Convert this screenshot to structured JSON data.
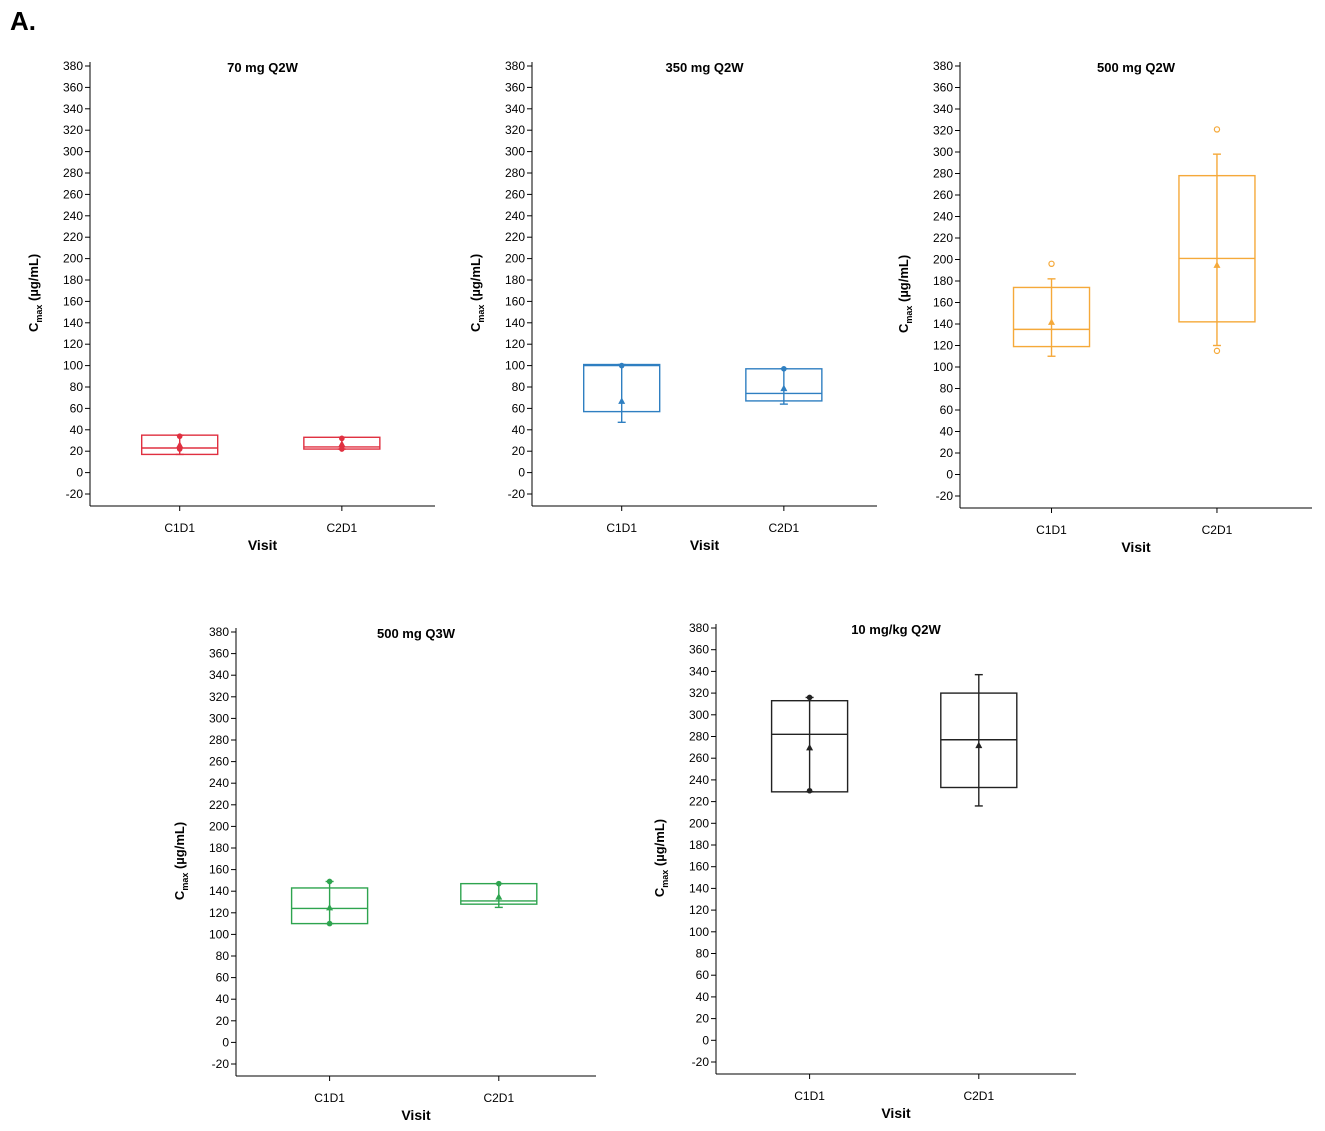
{
  "figure_label": "A.",
  "chart_data": [
    {
      "type": "boxplot",
      "title": "70 mg Q2W",
      "xlabel": "Visit",
      "ylabel_main": "C",
      "ylabel_sub": "max",
      "ylabel_rest": " (µg/mL)",
      "color": "#e03040",
      "ylim": [
        -20,
        380
      ],
      "yticks": [
        -20,
        0,
        20,
        40,
        60,
        80,
        100,
        120,
        140,
        160,
        180,
        200,
        220,
        240,
        260,
        280,
        300,
        320,
        340,
        360,
        380
      ],
      "categories": [
        "C1D1",
        "C2D1"
      ],
      "boxes": [
        {
          "q1": 17,
          "median": 23,
          "q3": 35,
          "whisker_low": 17,
          "whisker_high": 35,
          "mean": 26,
          "points": [
            22,
            34
          ]
        },
        {
          "q1": 22,
          "median": 24,
          "q3": 33,
          "whisker_low": 22,
          "whisker_high": 33,
          "mean": 27,
          "points": [
            22,
            32
          ]
        }
      ],
      "outliers": []
    },
    {
      "type": "boxplot",
      "title": "350 mg Q2W",
      "xlabel": "Visit",
      "ylabel_main": "C",
      "ylabel_sub": "max",
      "ylabel_rest": " (µg/mL)",
      "color": "#2f7fc1",
      "ylim": [
        -20,
        380
      ],
      "yticks": [
        -20,
        0,
        20,
        40,
        60,
        80,
        100,
        120,
        140,
        160,
        180,
        200,
        220,
        240,
        260,
        280,
        300,
        320,
        340,
        360,
        380
      ],
      "categories": [
        "C1D1",
        "C2D1"
      ],
      "boxes": [
        {
          "q1": 57,
          "median": 100,
          "q3": 101,
          "whisker_low": 47,
          "whisker_high": 101,
          "mean": 67,
          "points": [
            100
          ]
        },
        {
          "q1": 67,
          "median": 74,
          "q3": 97,
          "whisker_low": 64,
          "whisker_high": 97,
          "mean": 79,
          "points": [
            97
          ]
        }
      ],
      "outliers": []
    },
    {
      "type": "boxplot",
      "title": "500 mg Q2W",
      "xlabel": "Visit",
      "ylabel_main": "C",
      "ylabel_sub": "max",
      "ylabel_rest": " (µg/mL)",
      "color": "#f5a93a",
      "ylim": [
        -20,
        380
      ],
      "yticks": [
        -20,
        0,
        20,
        40,
        60,
        80,
        100,
        120,
        140,
        160,
        180,
        200,
        220,
        240,
        260,
        280,
        300,
        320,
        340,
        360,
        380
      ],
      "categories": [
        "C1D1",
        "C2D1"
      ],
      "boxes": [
        {
          "q1": 119,
          "median": 135,
          "q3": 174,
          "whisker_low": 110,
          "whisker_high": 182,
          "mean": 142,
          "points": []
        },
        {
          "q1": 142,
          "median": 201,
          "q3": 278,
          "whisker_low": 120,
          "whisker_high": 298,
          "mean": 195,
          "points": []
        }
      ],
      "outliers": [
        [
          196
        ],
        [
          321,
          115
        ]
      ]
    },
    {
      "type": "boxplot",
      "title": "500 mg Q3W",
      "xlabel": "Visit",
      "ylabel_main": "C",
      "ylabel_sub": "max",
      "ylabel_rest": " (µg/mL)",
      "color": "#2ea44f",
      "ylim": [
        -20,
        380
      ],
      "yticks": [
        -20,
        0,
        20,
        40,
        60,
        80,
        100,
        120,
        140,
        160,
        180,
        200,
        220,
        240,
        260,
        280,
        300,
        320,
        340,
        360,
        380
      ],
      "categories": [
        "C1D1",
        "C2D1"
      ],
      "boxes": [
        {
          "q1": 110,
          "median": 124,
          "q3": 143,
          "whisker_low": 110,
          "whisker_high": 149,
          "mean": 125,
          "points": [
            149,
            110
          ]
        },
        {
          "q1": 128,
          "median": 131,
          "q3": 147,
          "whisker_low": 125,
          "whisker_high": 147,
          "mean": 135,
          "points": [
            147
          ]
        }
      ],
      "outliers": []
    },
    {
      "type": "boxplot",
      "title": "10 mg/kg Q2W",
      "xlabel": "Visit",
      "ylabel_main": "C",
      "ylabel_sub": "max",
      "ylabel_rest": " (µg/mL)",
      "color": "#222222",
      "ylim": [
        -20,
        380
      ],
      "yticks": [
        -20,
        0,
        20,
        40,
        60,
        80,
        100,
        120,
        140,
        160,
        180,
        200,
        220,
        240,
        260,
        280,
        300,
        320,
        340,
        360,
        380
      ],
      "categories": [
        "C1D1",
        "C2D1"
      ],
      "boxes": [
        {
          "q1": 229,
          "median": 282,
          "q3": 313,
          "whisker_low": 229,
          "whisker_high": 316,
          "mean": 270,
          "points": [
            316,
            230
          ]
        },
        {
          "q1": 233,
          "median": 277,
          "q3": 320,
          "whisker_low": 216,
          "whisker_high": 337,
          "mean": 272,
          "points": []
        }
      ],
      "outliers": []
    }
  ]
}
